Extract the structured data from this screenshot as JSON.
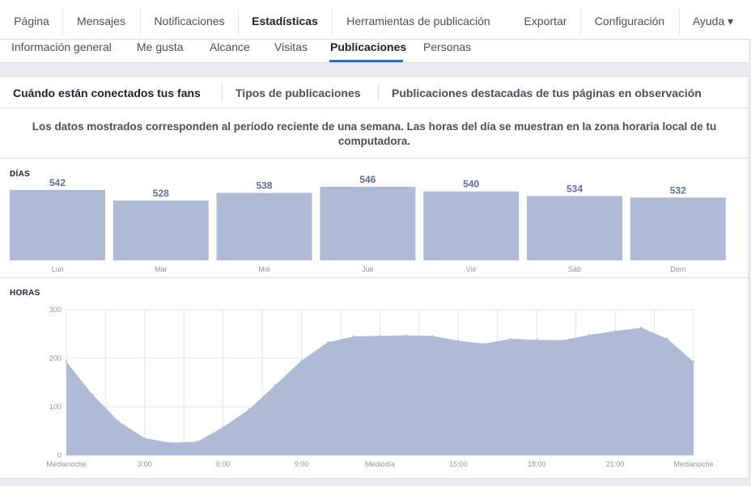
{
  "topnav": {
    "items": [
      {
        "label": "Página"
      },
      {
        "label": "Mensajes"
      },
      {
        "label": "Notificaciones"
      },
      {
        "label": "Estadísticas"
      },
      {
        "label": "Herramientas de publicación"
      },
      {
        "label": "Exportar"
      },
      {
        "label": "Configuración"
      },
      {
        "label": "Ayuda ▾"
      }
    ],
    "active": "Estadísticas"
  },
  "subnav": {
    "items": [
      {
        "label": "Información general"
      },
      {
        "label": "Me gusta"
      },
      {
        "label": "Alcance"
      },
      {
        "label": "Visitas"
      },
      {
        "label": "Publicaciones"
      },
      {
        "label": "Personas"
      }
    ],
    "active": "Publicaciones"
  },
  "tabs": [
    {
      "label": "Cuándo están conectados tus fans"
    },
    {
      "label": "Tipos de publicaciones"
    },
    {
      "label": "Publicaciones destacadas de tus páginas en observación"
    }
  ],
  "notice": "Los datos mostrados corresponden al período reciente de una semana. Las horas del día se muestran en la zona horaria local de tu computadora.",
  "days_label": "DÍAS",
  "hours_label": "HORAS",
  "colors": {
    "bar_fill": "#afbbd6",
    "area_fill": "#afbbd6",
    "value_text": "#5b6f9a",
    "accent": "#4267b2"
  },
  "chart_data": [
    {
      "type": "bar",
      "title": "DÍAS",
      "categories": [
        "Lun",
        "Mar",
        "Mié",
        "Jue",
        "Vie",
        "Sáb",
        "Dom"
      ],
      "values": [
        542,
        528,
        538,
        546,
        540,
        534,
        532
      ],
      "data_labels": true
    },
    {
      "type": "area",
      "title": "HORAS",
      "x": [
        0,
        1,
        2,
        3,
        4,
        5,
        6,
        7,
        8,
        9,
        10,
        11,
        12,
        13,
        14,
        15,
        16,
        17,
        18,
        19,
        20,
        21,
        22,
        23,
        24
      ],
      "values": [
        193,
        125,
        70,
        35,
        26,
        28,
        58,
        95,
        145,
        195,
        233,
        245,
        246,
        247,
        246,
        236,
        230,
        240,
        238,
        237,
        248,
        256,
        263,
        240,
        193
      ],
      "x_tick_labels": [
        "Medianoche",
        "3:00",
        "6:00",
        "9:00",
        "Mediodía",
        "15:00",
        "18:00",
        "21:00",
        "Medianoche"
      ],
      "x_ticks": [
        0,
        3,
        6,
        9,
        12,
        15,
        18,
        21,
        24
      ],
      "y_ticks": [
        0,
        100,
        200,
        300
      ],
      "ylim": [
        0,
        300
      ],
      "grid": true
    }
  ]
}
